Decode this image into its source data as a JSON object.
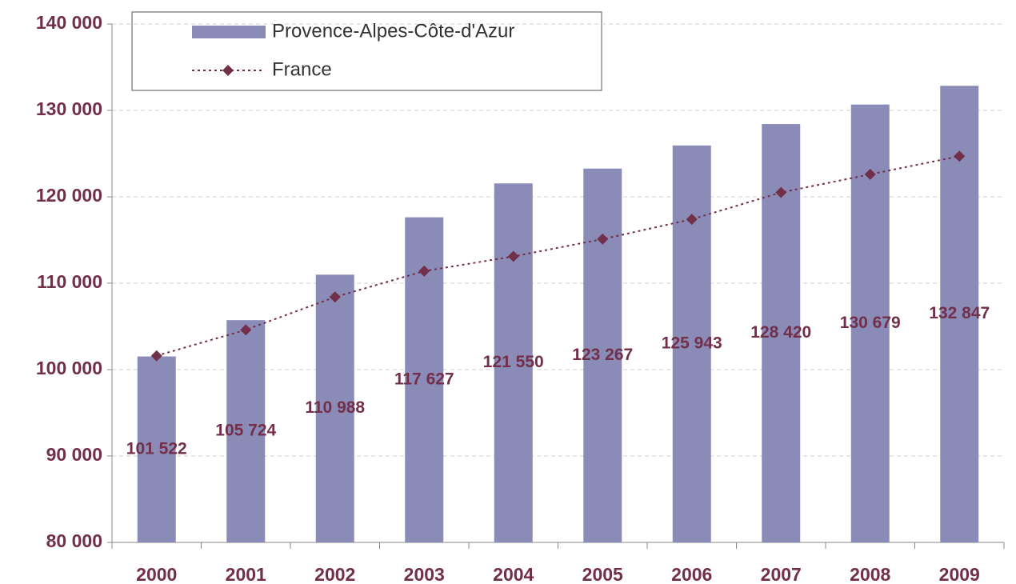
{
  "chart_data": {
    "type": "bar",
    "categories": [
      "2000",
      "2001",
      "2002",
      "2003",
      "2004",
      "2005",
      "2006",
      "2007",
      "2008",
      "2009"
    ],
    "series": [
      {
        "name": "Provence-Alpes-Côte-d'Azur",
        "type": "bar",
        "color": "#8b8bb7",
        "values": [
          101522,
          105724,
          110988,
          117627,
          121550,
          123267,
          125943,
          128420,
          130679,
          132847
        ],
        "value_labels": [
          "101 522",
          "105 724",
          "110 988",
          "117 627",
          "121 550",
          "123 267",
          "125 943",
          "128 420",
          "130 679",
          "132 847"
        ]
      },
      {
        "name": "France",
        "type": "line",
        "color": "#722f4a",
        "values": [
          101600,
          104600,
          108400,
          111400,
          113100,
          115100,
          117400,
          120500,
          122600,
          124700
        ]
      }
    ],
    "ylim": [
      80000,
      140000
    ],
    "yticks": [
      {
        "value": 80000,
        "label": "80 000"
      },
      {
        "value": 90000,
        "label": "90 000"
      },
      {
        "value": 100000,
        "label": "100 000"
      },
      {
        "value": 110000,
        "label": "110 000"
      },
      {
        "value": 120000,
        "label": "120 000"
      },
      {
        "value": 130000,
        "label": "130 000"
      },
      {
        "value": 140000,
        "label": "140 000"
      }
    ],
    "grid": true,
    "legend": "top-left",
    "label_color": "#722f4a"
  }
}
